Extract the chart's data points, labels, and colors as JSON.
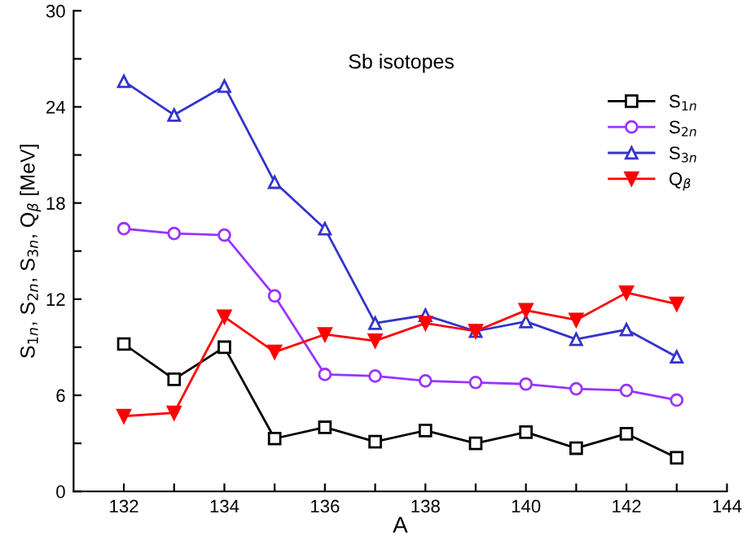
{
  "chart_data": {
    "type": "line",
    "xlabel": "A",
    "ylabel": "S$_{1n}$, S$_{2n}$, S$_{3n}$, Q$_{β}$ [MeV]",
    "annotations": [
      "Sb isotopes"
    ],
    "x": [
      132,
      133,
      134,
      135,
      136,
      137,
      138,
      139,
      140,
      141,
      142,
      143
    ],
    "series": [
      {
        "name": "S$_{1n}$",
        "color": "#000000",
        "marker": "square",
        "values": [
          9.2,
          7.0,
          9.0,
          3.3,
          4.0,
          3.1,
          3.8,
          3.0,
          3.7,
          2.7,
          3.6,
          2.1
        ]
      },
      {
        "name": "S$_{2n}$",
        "color": "#9933ff",
        "marker": "circle",
        "values": [
          16.4,
          16.1,
          16.0,
          12.2,
          7.3,
          7.2,
          6.9,
          6.8,
          6.7,
          6.4,
          6.3,
          5.7
        ]
      },
      {
        "name": "S$_{3n}$",
        "color": "#3333cc",
        "marker": "triangle",
        "values": [
          25.6,
          23.5,
          25.3,
          19.3,
          16.4,
          10.5,
          11.0,
          10.0,
          10.6,
          9.5,
          10.1,
          8.4
        ]
      },
      {
        "name": "Q$_{β}$",
        "color": "#ff0000",
        "marker": "triangle_down",
        "values": [
          4.7,
          4.9,
          10.9,
          8.7,
          9.8,
          9.4,
          10.5,
          10.0,
          11.3,
          10.7,
          12.4,
          11.7
        ]
      }
    ],
    "xlim": [
      131,
      144
    ],
    "xticks": [
      132,
      {
        "value": 133,
        "label": null
      },
      134,
      {
        "value": 135,
        "label": null
      },
      136,
      {
        "value": 137,
        "label": null
      },
      138,
      {
        "value": 139,
        "label": null
      },
      140,
      {
        "value": 141,
        "label": null
      },
      142,
      {
        "value": 143,
        "label": null
      },
      144
    ],
    "ylim": [
      0,
      30
    ],
    "yticks": [
      0,
      {
        "value": 3,
        "label": null
      },
      6,
      {
        "value": 9,
        "label": null
      },
      12,
      {
        "value": 15,
        "label": null
      },
      18,
      {
        "value": 21,
        "label": null
      },
      24,
      {
        "value": 27,
        "label": null
      },
      30
    ],
    "grid": false,
    "legend": "top right",
    "line_style": "solid"
  }
}
